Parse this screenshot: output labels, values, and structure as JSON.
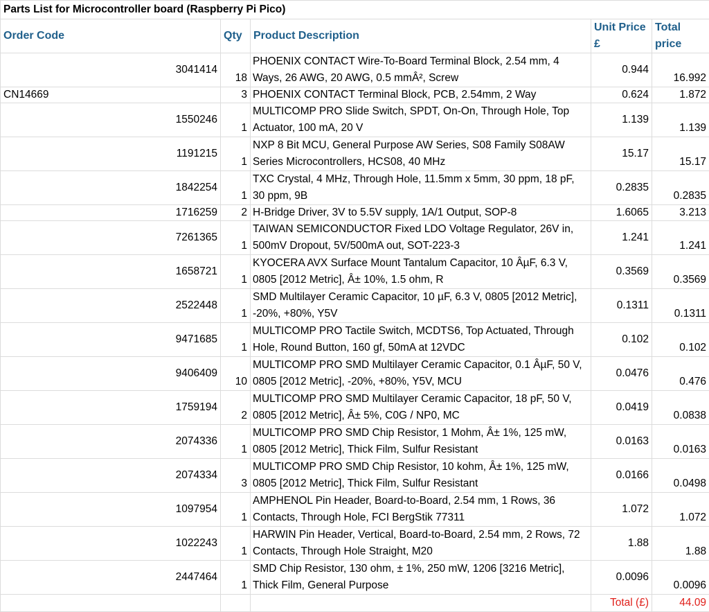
{
  "title": "Parts List for Microcontroller board (Raspberry Pi Pico)",
  "headers": {
    "order_code": "Order Code",
    "qty": "Qty",
    "description": "Product Description",
    "unit_price": "Unit Price £",
    "total_price": "Total price"
  },
  "rows": [
    {
      "code": "3041414",
      "qty": "18",
      "desc": "PHOENIX CONTACT  Wire-To-Board Terminal Block, 2.54 mm, 4 Ways, 26 AWG, 20 AWG, 0.5 mmÂ², Screw",
      "unit": "0.944",
      "total": "16.992"
    },
    {
      "code": "CN14669",
      "qty": "3",
      "desc": "PHOENIX CONTACT  Terminal Block, PCB, 2.54mm, 2 Way",
      "unit": "0.624",
      "total": "1.872"
    },
    {
      "code": "1550246",
      "qty": "1",
      "desc": "MULTICOMP PRO  Slide Switch, SPDT, On-On, Through Hole, Top Actuator, 100 mA, 20 V",
      "unit": "1.139",
      "total": "1.139"
    },
    {
      "code": "1191215",
      "qty": "1",
      "desc": "NXP  8 Bit MCU, General Purpose AW Series, S08 Family S08AW Series Microcontrollers, HCS08, 40 MHz",
      "unit": "15.17",
      "total": "15.17"
    },
    {
      "code": "1842254",
      "qty": "1",
      "desc": "TXC  Crystal, 4 MHz, Through Hole, 11.5mm x 5mm, 30 ppm, 18 pF, 30 ppm, 9B",
      "unit": "0.2835",
      "total": "0.2835"
    },
    {
      "code": "1716259",
      "qty": "2",
      "desc": "H-Bridge Driver, 3V to 5.5V supply, 1A/1 Output, SOP-8",
      "unit": "1.6065",
      "total": "3.213"
    },
    {
      "code": "7261365",
      "qty": "1",
      "desc": "TAIWAN SEMICONDUCTOR  Fixed LDO Voltage Regulator, 26V in, 500mV Dropout, 5V/500mA out, SOT-223-3",
      "unit": "1.241",
      "total": "1.241"
    },
    {
      "code": "1658721",
      "qty": "1",
      "desc": "KYOCERA AVX  Surface Mount Tantalum Capacitor, 10 ÂµF, 6.3 V, 0805 [2012 Metric], Â± 10%, 1.5 ohm, R",
      "unit": "0.3569",
      "total": "0.3569"
    },
    {
      "code": "2522448",
      "qty": "1",
      "desc": "SMD Multilayer Ceramic Capacitor, 10 µF, 6.3 V, 0805 [2012 Metric], -20%, +80%, Y5V",
      "unit": "0.1311",
      "total": "0.1311"
    },
    {
      "code": "9471685",
      "qty": "1",
      "desc": "MULTICOMP PRO  Tactile Switch, MCDTS6, Top Actuated, Through Hole, Round Button, 160 gf, 50mA at 12VDC",
      "unit": "0.102",
      "total": "0.102"
    },
    {
      "code": "9406409",
      "qty": "10",
      "desc": "MULTICOMP PRO  SMD Multilayer Ceramic Capacitor, 0.1 ÂµF, 50 V, 0805 [2012 Metric], -20%, +80%, Y5V, MCU",
      "unit": "0.0476",
      "total": "0.476"
    },
    {
      "code": "1759194",
      "qty": "2",
      "desc": "MULTICOMP PRO  SMD Multilayer Ceramic Capacitor, 18 pF, 50 V, 0805 [2012 Metric], Â± 5%, C0G / NP0, MC",
      "unit": "0.0419",
      "total": "0.0838"
    },
    {
      "code": "2074336",
      "qty": "1",
      "desc": "MULTICOMP PRO  SMD Chip Resistor, 1 Mohm, Â± 1%, 125 mW, 0805 [2012 Metric], Thick Film, Sulfur Resistant",
      "unit": "0.0163",
      "total": "0.0163"
    },
    {
      "code": "2074334",
      "qty": "3",
      "desc": "MULTICOMP PRO  SMD Chip Resistor, 10 kohm, Â± 1%, 125 mW, 0805 [2012 Metric], Thick Film, Sulfur Resistant",
      "unit": "0.0166",
      "total": "0.0498"
    },
    {
      "code": "1097954",
      "qty": "1",
      "desc": "AMPHENOL   Pin Header, Board-to-Board, 2.54 mm, 1 Rows, 36 Contacts, Through Hole, FCI BergStik 77311",
      "unit": "1.072",
      "total": "1.072"
    },
    {
      "code": "1022243",
      "qty": "1",
      "desc": "HARWIN  Pin Header, Vertical, Board-to-Board, 2.54 mm, 2 Rows, 72 Contacts, Through Hole Straight, M20",
      "unit": "1.88",
      "total": "1.88"
    },
    {
      "code": "2447464",
      "qty": "1",
      "desc": "SMD Chip Resistor, 130 ohm, ± 1%, 250 mW, 1206 [3216 Metric], Thick Film, General Purpose",
      "unit": "0.0096",
      "total": "0.0096"
    }
  ],
  "total": {
    "label": "Total (£)",
    "value": "44.09"
  },
  "colors": {
    "header_text": "#1f5f8b",
    "total_text": "#e0201b",
    "gridline": "#dcdcdc"
  }
}
